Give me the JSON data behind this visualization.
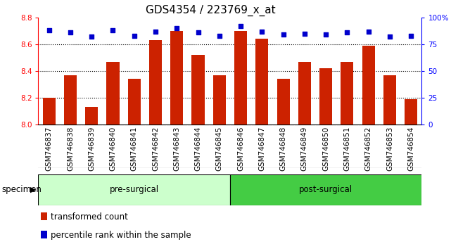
{
  "title": "GDS4354 / 223769_x_at",
  "categories": [
    "GSM746837",
    "GSM746838",
    "GSM746839",
    "GSM746840",
    "GSM746841",
    "GSM746842",
    "GSM746843",
    "GSM746844",
    "GSM746845",
    "GSM746846",
    "GSM746847",
    "GSM746848",
    "GSM746849",
    "GSM746850",
    "GSM746851",
    "GSM746852",
    "GSM746853",
    "GSM746854"
  ],
  "bar_values": [
    8.2,
    8.37,
    8.13,
    8.47,
    8.34,
    8.63,
    8.7,
    8.52,
    8.37,
    8.7,
    8.64,
    8.34,
    8.47,
    8.42,
    8.47,
    8.59,
    8.37,
    8.19
  ],
  "dot_values": [
    88,
    86,
    82,
    88,
    83,
    87,
    90,
    86,
    83,
    92,
    87,
    84,
    85,
    84,
    86,
    87,
    82,
    83
  ],
  "bar_color": "#cc2200",
  "dot_color": "#0000cc",
  "ylim_left": [
    8.0,
    8.8
  ],
  "ylim_right": [
    0,
    100
  ],
  "yticks_left": [
    8.0,
    8.2,
    8.4,
    8.6,
    8.8
  ],
  "yticks_right": [
    0,
    25,
    50,
    75,
    100
  ],
  "ytick_labels_right": [
    "0",
    "25",
    "50",
    "75",
    "100%"
  ],
  "grid_values": [
    8.2,
    8.4,
    8.6
  ],
  "groups": [
    {
      "label": "pre-surgical",
      "start": 0,
      "end": 9,
      "color": "#ccffcc"
    },
    {
      "label": "post-surgical",
      "start": 9,
      "end": 18,
      "color": "#44cc44"
    }
  ],
  "specimen_label": "specimen",
  "legend_items": [
    {
      "label": "transformed count",
      "color": "#cc2200"
    },
    {
      "label": "percentile rank within the sample",
      "color": "#0000cc"
    }
  ],
  "bar_width": 0.6,
  "bg_color": "#ffffff",
  "xtick_bg": "#d8d8d8",
  "title_fontsize": 11,
  "tick_fontsize": 7.5,
  "label_fontsize": 8.5
}
